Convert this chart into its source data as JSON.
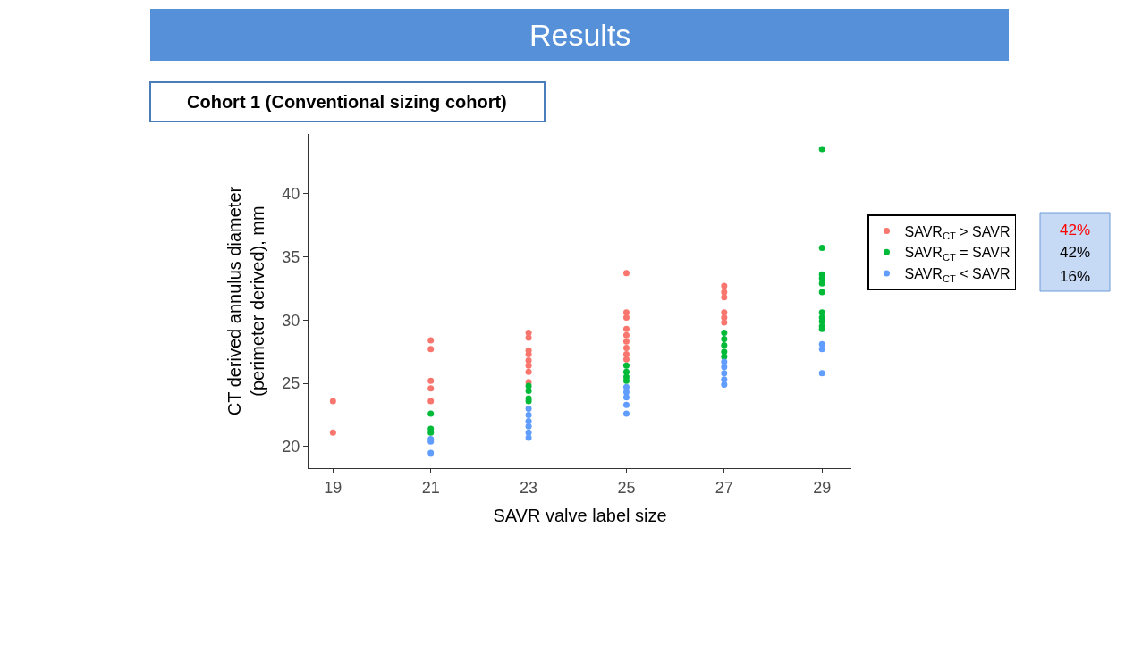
{
  "chart_data": {
    "type": "scatter",
    "title": "Results",
    "subtitle": "Cohort 1 (Conventional sizing cohort)",
    "xlabel": "SAVR valve label size",
    "ylabel": "CT derived annulus diameter\n(perimeter derived), mm",
    "xlim": [
      18.5,
      29.6
    ],
    "xticks": [
      19,
      21,
      23,
      25,
      27,
      29
    ],
    "ylim": [
      18.3,
      44.7
    ],
    "yticks": [
      20,
      25,
      30,
      35,
      40
    ],
    "legend": "right",
    "marker": "circle",
    "annotations": [
      "42%",
      "42%",
      "16%"
    ],
    "series": [
      {
        "name": "SAVR$_{CT}$ > SAVR",
        "color": "#f8766d",
        "x": [
          19,
          19,
          21,
          21,
          21,
          21,
          21,
          23,
          23,
          23,
          23,
          23,
          23,
          23,
          23,
          25,
          25,
          25,
          25,
          25,
          25,
          25,
          25,
          25,
          27,
          27,
          27,
          27,
          27,
          27
        ],
        "values": [
          23.6,
          21.1,
          28.4,
          27.7,
          25.2,
          24.6,
          23.6,
          29.0,
          28.6,
          27.6,
          27.3,
          26.8,
          26.4,
          25.9,
          25.1,
          33.7,
          30.6,
          30.2,
          29.3,
          28.8,
          28.3,
          27.8,
          27.3,
          26.9,
          32.7,
          32.2,
          31.8,
          30.6,
          30.2,
          29.8
        ]
      },
      {
        "name": "SAVR$_{CT}$ = SAVR",
        "color": "#00ba38",
        "x": [
          21,
          21,
          21,
          23,
          23,
          23,
          23,
          25,
          25,
          25,
          25,
          27,
          27,
          27,
          27,
          27,
          29,
          29,
          29,
          29,
          29,
          29,
          29,
          29,
          29,
          29,
          29
        ],
        "values": [
          22.6,
          21.4,
          21.1,
          24.8,
          24.4,
          23.8,
          23.6,
          26.4,
          25.9,
          25.5,
          25.2,
          29.0,
          28.5,
          28.0,
          27.5,
          27.1,
          43.5,
          35.7,
          33.6,
          33.3,
          32.9,
          32.2,
          30.6,
          30.2,
          29.9,
          29.5,
          29.3
        ]
      },
      {
        "name": "SAVR$_{CT}$ < SAVR",
        "color": "#619cff",
        "x": [
          21,
          21,
          21,
          23,
          23,
          23,
          23,
          23,
          23,
          25,
          25,
          25,
          25,
          25,
          27,
          27,
          27,
          27,
          27,
          29,
          29,
          29
        ],
        "values": [
          20.6,
          20.4,
          19.5,
          23.0,
          22.5,
          22.0,
          21.6,
          21.1,
          20.7,
          24.7,
          24.3,
          23.9,
          23.3,
          22.6,
          26.7,
          26.3,
          25.8,
          25.3,
          24.9,
          28.1,
          27.7,
          25.8
        ]
      }
    ]
  }
}
